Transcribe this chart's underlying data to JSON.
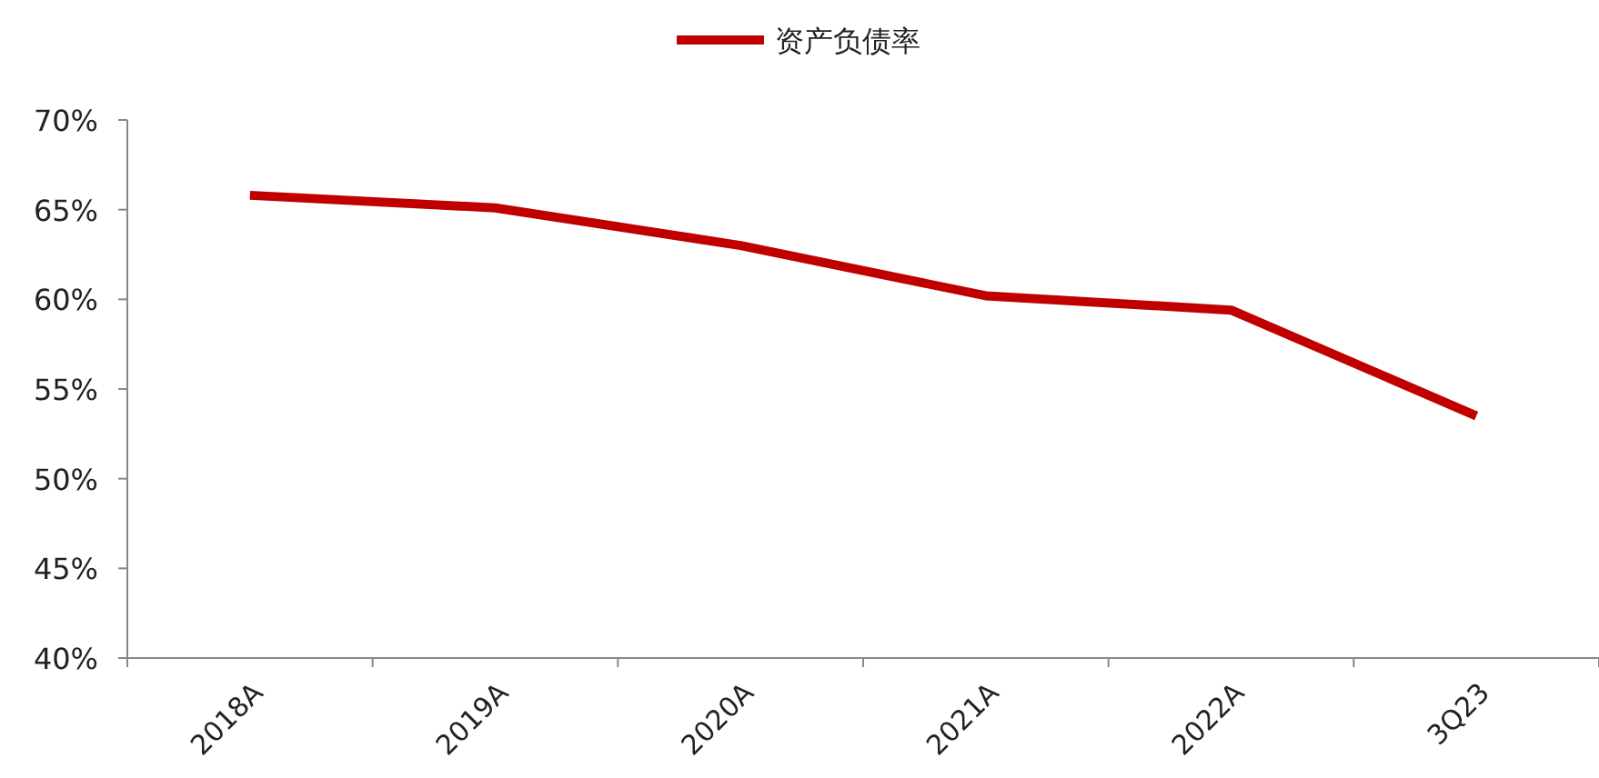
{
  "chart_data": {
    "type": "line",
    "categories": [
      "2018A",
      "2019A",
      "2020A",
      "2021A",
      "2022A",
      "3Q23"
    ],
    "series": [
      {
        "name": "资产负债率",
        "color": "#c00000",
        "values": [
          65.8,
          65.1,
          63.0,
          60.2,
          59.4,
          53.5
        ]
      }
    ],
    "ylim": [
      40,
      70
    ],
    "yticks": [
      {
        "value": 40,
        "label": "40%"
      },
      {
        "value": 45,
        "label": "45%"
      },
      {
        "value": 50,
        "label": "50%"
      },
      {
        "value": 55,
        "label": "55%"
      },
      {
        "value": 60,
        "label": "60%"
      },
      {
        "value": 65,
        "label": "65%"
      },
      {
        "value": 70,
        "label": "70%"
      }
    ],
    "legend": "top",
    "grid": false,
    "marker": "none",
    "line_style": "solid"
  }
}
